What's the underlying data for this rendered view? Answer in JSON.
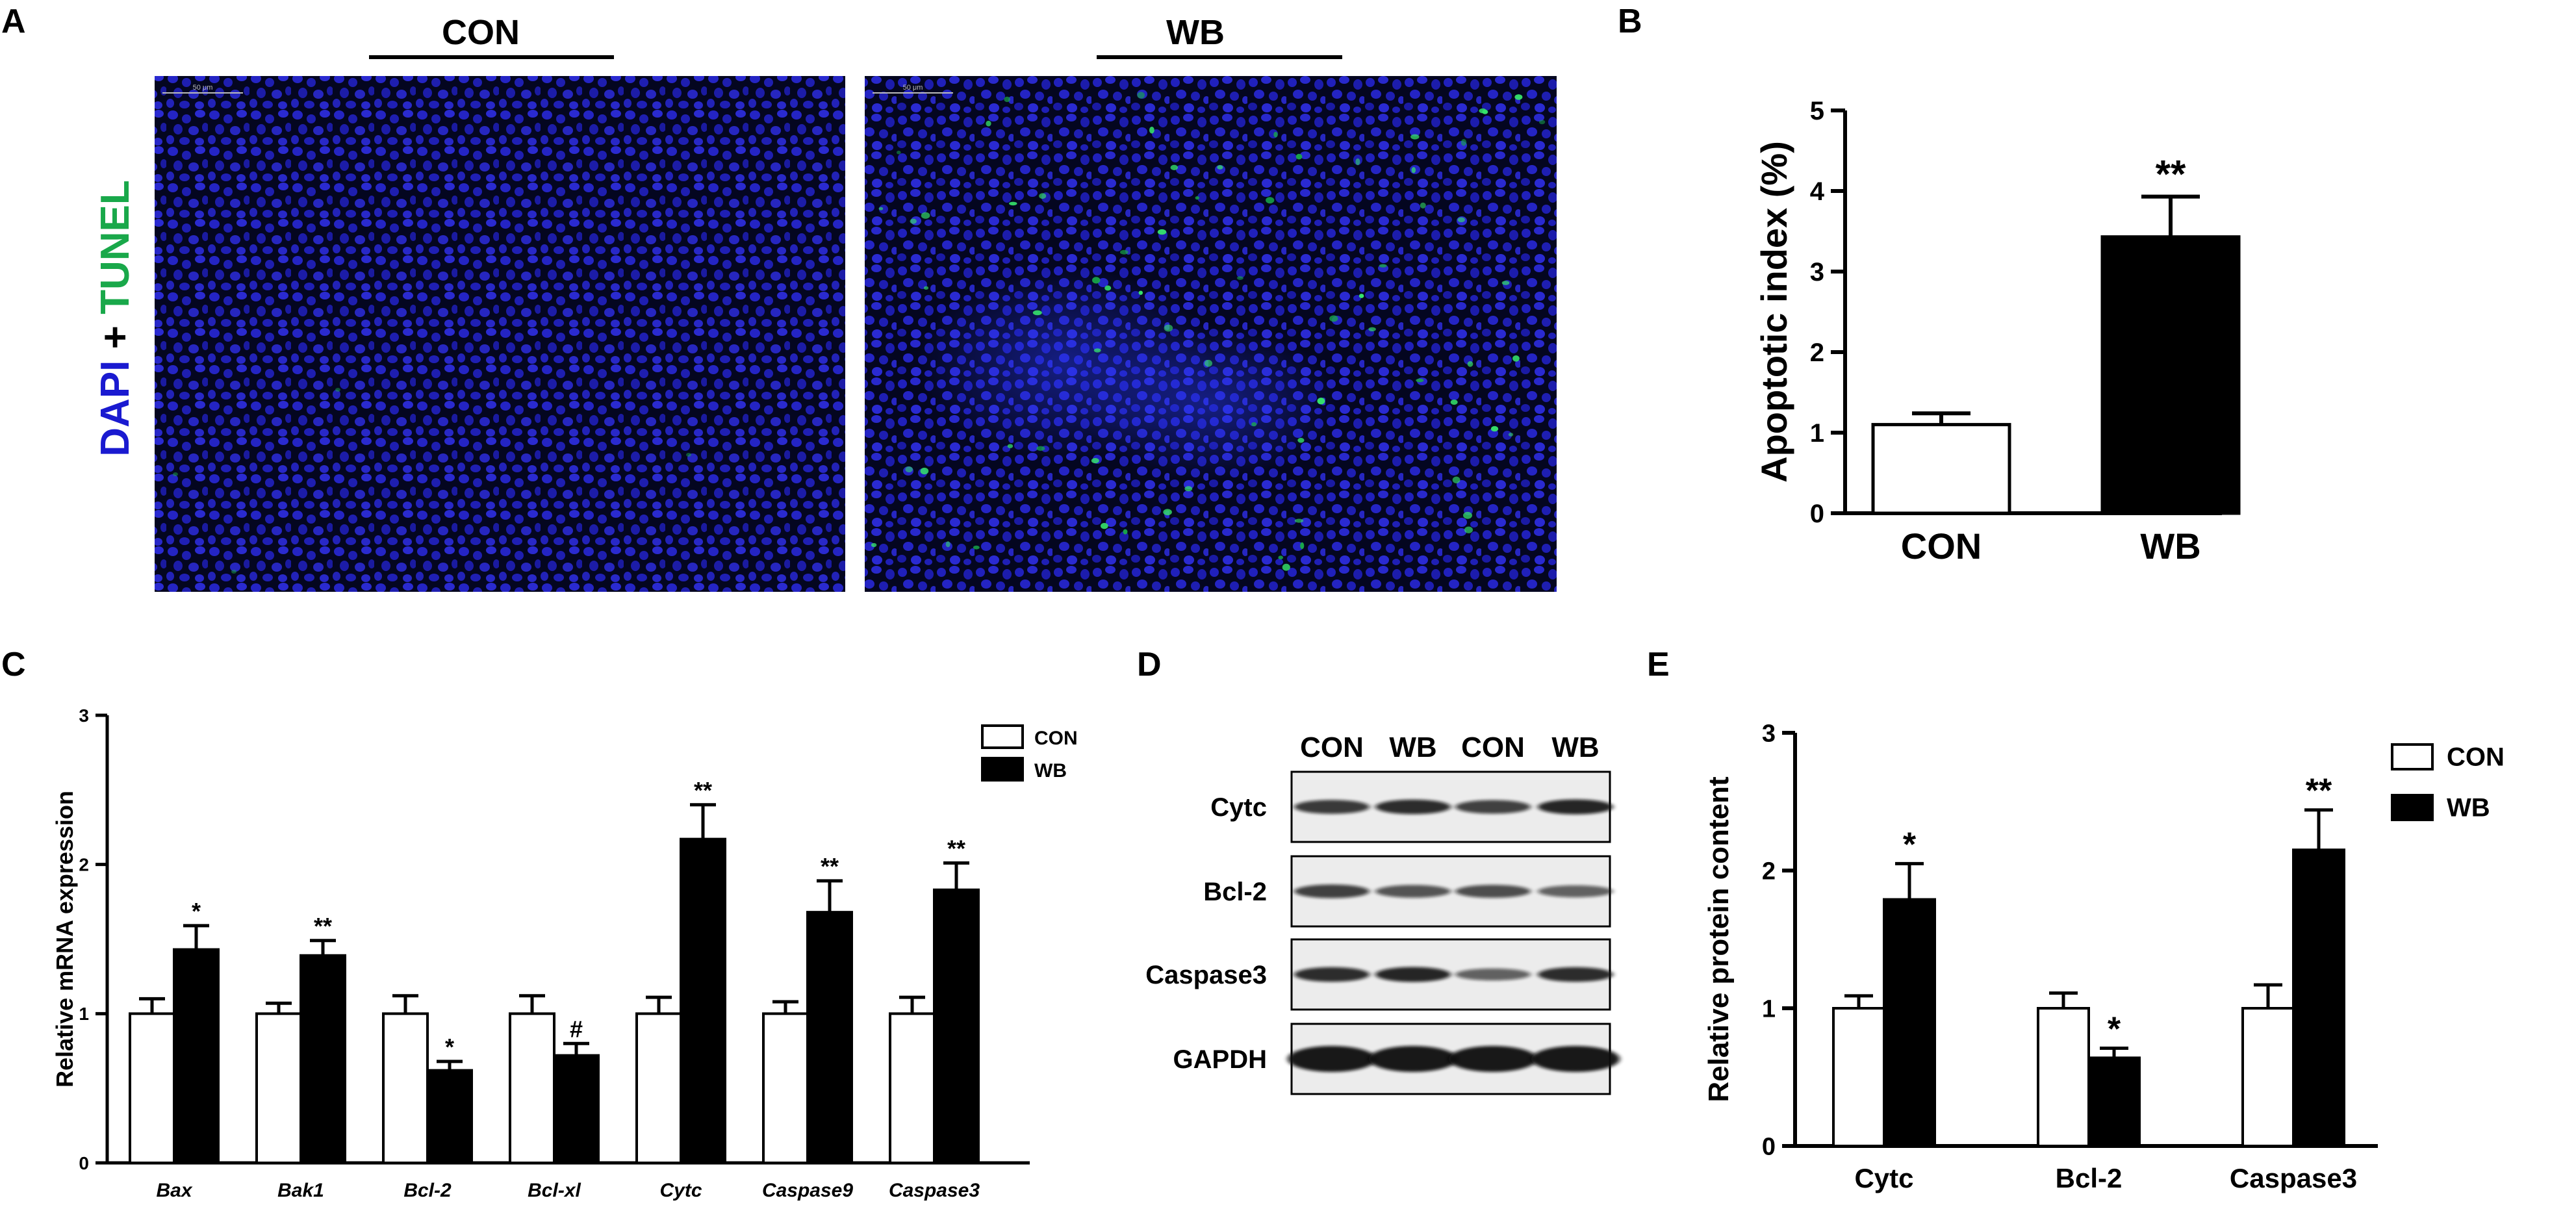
{
  "panels": {
    "A": {
      "label": "A",
      "group_con": "CON",
      "group_wb": "WB",
      "stain_dapi": "DAPI",
      "stain_plus": " + ",
      "stain_tunel": "TUNEL",
      "scale_text": "50 μm",
      "colors": {
        "dapi": "#1a1ad0",
        "tunel": "#19a84a"
      }
    },
    "B": {
      "label": "B"
    },
    "C": {
      "label": "C"
    },
    "D": {
      "label": "D",
      "lanes": [
        "CON",
        "WB",
        "CON",
        "WB"
      ],
      "bands": [
        {
          "name": "Cytc",
          "intensity": [
            0.75,
            0.85,
            0.7,
            0.9
          ]
        },
        {
          "name": "Bcl-2",
          "intensity": [
            0.7,
            0.55,
            0.6,
            0.45
          ]
        },
        {
          "name": "Caspase3",
          "intensity": [
            0.85,
            0.9,
            0.45,
            0.85
          ]
        },
        {
          "name": "GAPDH",
          "intensity": [
            1.0,
            1.0,
            1.0,
            1.0
          ]
        }
      ]
    },
    "E": {
      "label": "E"
    }
  },
  "chart_data": [
    {
      "panel": "B",
      "type": "bar",
      "categories": [
        "CON",
        "WB"
      ],
      "series": [
        {
          "values": [
            1.1,
            3.43
          ],
          "errors": [
            0.14,
            0.5
          ]
        }
      ],
      "significance": [
        "",
        "**"
      ],
      "title": "",
      "xlabel": "",
      "ylabel": "Apoptotic index (%)",
      "ylim": [
        0,
        5
      ],
      "yticks": [
        "0",
        "1",
        "2",
        "3",
        "4",
        "5"
      ],
      "grid": false,
      "colors": [
        "#ffffff",
        "#000000"
      ]
    },
    {
      "panel": "C",
      "type": "bar",
      "categories": [
        "Bax",
        "Bak1",
        "Bcl-2",
        "Bcl-xl",
        "Cytc",
        "Caspase9",
        "Caspase3"
      ],
      "series": [
        {
          "name": "CON",
          "values": [
            1.0,
            1.0,
            1.0,
            1.0,
            1.0,
            1.0,
            1.0
          ],
          "errors": [
            0.1,
            0.07,
            0.12,
            0.12,
            0.11,
            0.08,
            0.11
          ]
        },
        {
          "name": "WB",
          "values": [
            1.43,
            1.39,
            0.62,
            0.72,
            2.17,
            1.68,
            1.83
          ],
          "errors": [
            0.16,
            0.1,
            0.06,
            0.08,
            0.23,
            0.21,
            0.18
          ]
        }
      ],
      "significance": [
        "*",
        "**",
        "*",
        "#",
        "**",
        "**",
        "**"
      ],
      "title": "",
      "xlabel": "",
      "ylabel": "Relative mRNA expression",
      "ylim": [
        0,
        3
      ],
      "yticks": [
        "0",
        "1",
        "2",
        "3"
      ],
      "legend": "top-right",
      "grid": false
    },
    {
      "panel": "E",
      "type": "bar",
      "categories": [
        "Cytc",
        "Bcl-2",
        "Caspase3"
      ],
      "series": [
        {
          "name": "CON",
          "values": [
            1.0,
            1.0,
            1.0
          ],
          "errors": [
            0.09,
            0.11,
            0.17
          ]
        },
        {
          "name": "WB",
          "values": [
            1.79,
            0.64,
            2.15
          ],
          "errors": [
            0.26,
            0.07,
            0.29
          ]
        }
      ],
      "significance": [
        "*",
        "*",
        "**"
      ],
      "title": "",
      "xlabel": "",
      "ylabel": "Relative protein content",
      "ylim": [
        0,
        3
      ],
      "yticks": [
        "0",
        "1",
        "2",
        "3"
      ],
      "legend": "top-right",
      "grid": false
    }
  ]
}
